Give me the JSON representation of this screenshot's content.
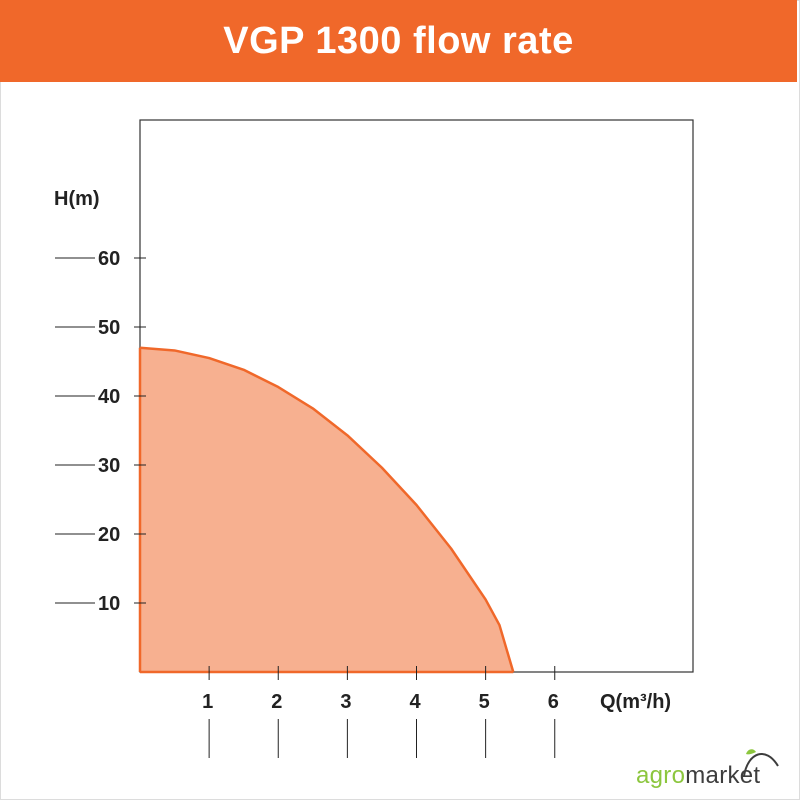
{
  "header": {
    "title": "VGP 1300 flow rate"
  },
  "brand": {
    "agro": "agro",
    "market": "market",
    "icon": "leaf-sprout-icon"
  },
  "colors": {
    "accent": "#f0682a",
    "fill": "#f7b090",
    "stroke": "#f0682a"
  },
  "chart_data": {
    "type": "area",
    "title": "VGP 1300 flow rate",
    "xlabel": "Q(m³/h)",
    "ylabel": "H(m)",
    "xlim": [
      0,
      8
    ],
    "ylim": [
      0,
      80
    ],
    "x_ticks": [
      "1",
      "2",
      "3",
      "4",
      "5",
      "6"
    ],
    "y_ticks": [
      "10",
      "20",
      "30",
      "40",
      "50",
      "60"
    ],
    "series": [
      {
        "x": [
          0,
          0.5,
          1,
          1.5,
          2,
          2.5,
          3,
          3.5,
          4,
          4.5,
          5,
          5.2,
          5.4
        ],
        "y": [
          47,
          46.6,
          45.5,
          43.8,
          41.3,
          38.2,
          34.3,
          29.6,
          24.2,
          17.9,
          10.5,
          6.8,
          0
        ]
      }
    ],
    "grid": false
  }
}
